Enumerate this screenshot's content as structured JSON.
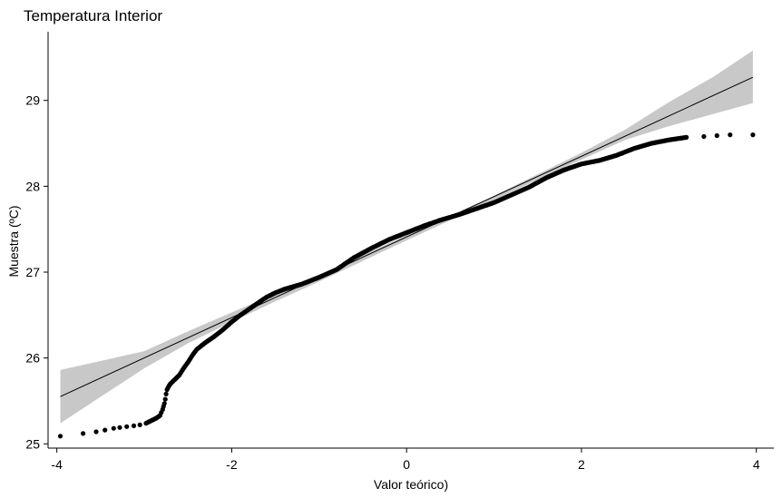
{
  "chart_data": {
    "type": "scatter",
    "title": "Temperatura Interior",
    "xlabel": "Valor teórico)",
    "ylabel": "Muestra (ºC)",
    "xlim": [
      -4.1,
      4.2
    ],
    "ylim": [
      24.95,
      29.8
    ],
    "x_ticks": [
      -4,
      -2,
      0,
      2,
      4
    ],
    "y_ticks": [
      25,
      26,
      27,
      28,
      29
    ],
    "x_tick_labels": [
      "-4",
      "-2",
      "0",
      "2",
      "4"
    ],
    "y_tick_labels": [
      "25",
      "26",
      "27",
      "28",
      "29"
    ],
    "grid": false,
    "legend": "none",
    "colors": {
      "points": "#000000",
      "line": "#000000",
      "band": "#c8c8c8",
      "axis": "#000000"
    },
    "reference_line": {
      "x": [
        -3.96,
        3.96
      ],
      "y": [
        25.55,
        29.27
      ]
    },
    "confidence_band": {
      "x": [
        -3.96,
        -3.0,
        -2.5,
        -2.0,
        -1.5,
        -1.0,
        0.0,
        1.0,
        2.0,
        2.5,
        3.0,
        3.5,
        3.96
      ],
      "lower": [
        25.24,
        25.88,
        26.17,
        26.42,
        26.66,
        26.89,
        27.37,
        27.84,
        28.31,
        28.54,
        28.7,
        28.84,
        28.97
      ],
      "upper": [
        25.86,
        26.08,
        26.31,
        26.53,
        26.75,
        26.97,
        27.43,
        27.89,
        28.39,
        28.66,
        28.98,
        29.27,
        29.58
      ]
    },
    "points": {
      "x": [
        -3.96,
        -3.7,
        -3.55,
        -3.45,
        -3.35,
        -3.28,
        -3.2,
        -3.12,
        -3.05,
        -2.98,
        -2.92,
        -2.86,
        -2.82,
        -2.79,
        -2.77,
        -2.76,
        -2.75,
        -2.74,
        -2.72,
        -2.7,
        -2.66,
        -2.6,
        -2.55,
        -2.5,
        -2.45,
        -2.4,
        -2.3,
        -2.2,
        -2.1,
        -2.0,
        -1.9,
        -1.8,
        -1.7,
        -1.6,
        -1.5,
        -1.4,
        -1.2,
        -1.0,
        -0.8,
        -0.6,
        -0.4,
        -0.2,
        0.0,
        0.2,
        0.4,
        0.6,
        0.8,
        1.0,
        1.2,
        1.4,
        1.6,
        1.8,
        2.0,
        2.2,
        2.4,
        2.6,
        2.8,
        3.0,
        3.2,
        3.4,
        3.55,
        3.7,
        3.96
      ],
      "y": [
        25.09,
        25.12,
        25.14,
        25.16,
        25.18,
        25.19,
        25.2,
        25.21,
        25.22,
        25.24,
        25.27,
        25.3,
        25.33,
        25.4,
        25.47,
        25.52,
        25.58,
        25.63,
        25.67,
        25.7,
        25.74,
        25.8,
        25.88,
        25.95,
        26.03,
        26.1,
        26.18,
        26.25,
        26.33,
        26.42,
        26.5,
        26.57,
        26.64,
        26.71,
        26.76,
        26.8,
        26.86,
        26.94,
        27.03,
        27.17,
        27.28,
        27.38,
        27.46,
        27.54,
        27.61,
        27.67,
        27.74,
        27.81,
        27.9,
        27.99,
        28.1,
        28.19,
        28.26,
        28.3,
        28.36,
        28.44,
        28.5,
        28.54,
        28.57,
        28.58,
        28.59,
        28.6,
        28.6
      ]
    }
  }
}
